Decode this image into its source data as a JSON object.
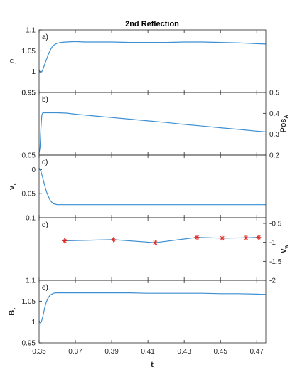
{
  "chart_data": {
    "type": "line",
    "title": "2nd Reflection",
    "xlabel": "t",
    "xlim": [
      0.35,
      0.475
    ],
    "xticks": [
      0.35,
      0.37,
      0.39,
      0.41,
      0.43,
      0.45,
      0.47
    ],
    "xtick_labels": [
      "0.35",
      "0.37",
      "0.39",
      "0.41",
      "0.43",
      "0.45",
      "0.47"
    ],
    "colors": {
      "line": "#3d8fd1",
      "marker": "#e0201b",
      "axis": "#262626"
    },
    "panels": [
      {
        "id": "a",
        "panel_label": "a)",
        "ylabel_left": "ρ",
        "ylim_left": [
          0.95,
          1.1
        ],
        "yticks_left": [
          "0.95",
          "1",
          "1.05",
          "1.1"
        ],
        "yticks_right": [],
        "series": [
          {
            "axis": "left",
            "style": "line",
            "x": [
              0.35,
              0.3505,
              0.351,
              0.3515,
              0.352,
              0.3525,
              0.353,
              0.354,
              0.355,
              0.356,
              0.357,
              0.358,
              0.359,
              0.36,
              0.361,
              0.362,
              0.365,
              0.37,
              0.375,
              0.38,
              0.39,
              0.4,
              0.41,
              0.42,
              0.43,
              0.44,
              0.45,
              0.46,
              0.47,
              0.475
            ],
            "y": [
              1.005,
              0.998,
              0.998,
              1.0,
              1.004,
              1.01,
              1.017,
              1.028,
              1.04,
              1.05,
              1.058,
              1.063,
              1.066,
              1.068,
              1.069,
              1.07,
              1.071,
              1.072,
              1.071,
              1.071,
              1.071,
              1.07,
              1.07,
              1.07,
              1.071,
              1.071,
              1.07,
              1.069,
              1.067,
              1.066
            ]
          }
        ]
      },
      {
        "id": "b",
        "panel_label": "b)",
        "ylabel_left": "",
        "ylabel_right": "Pos_A",
        "ylim_left": [
          0.05,
          0.95
        ],
        "ylim_right": [
          0.2,
          0.5
        ],
        "yticks_left": [
          "0.05",
          "0.95"
        ],
        "yticks_right": [
          "0.2",
          "0.3",
          "0.4",
          "0.5"
        ],
        "series": [
          {
            "axis": "right",
            "style": "line",
            "x": [
              0.35,
              0.3505,
              0.351,
              0.3515,
              0.352,
              0.3525,
              0.3535,
              0.355,
              0.358,
              0.36,
              0.365,
              0.37,
              0.38,
              0.39,
              0.4,
              0.41,
              0.42,
              0.43,
              0.44,
              0.45,
              0.46,
              0.47,
              0.475
            ],
            "y": [
              0.21,
              0.235,
              0.33,
              0.39,
              0.402,
              0.403,
              0.403,
              0.403,
              0.403,
              0.403,
              0.401,
              0.396,
              0.388,
              0.38,
              0.372,
              0.364,
              0.356,
              0.347,
              0.339,
              0.331,
              0.323,
              0.315,
              0.311
            ]
          }
        ]
      },
      {
        "id": "c",
        "panel_label": "c)",
        "ylabel_left": "v_x",
        "ylim_left": [
          -0.1,
          0.03
        ],
        "yticks_left": [
          "0",
          "-0.05",
          "-0.1"
        ],
        "yticks_right": [],
        "series": [
          {
            "axis": "left",
            "style": "line",
            "x": [
              0.35,
              0.351,
              0.352,
              0.353,
              0.354,
              0.355,
              0.356,
              0.357,
              0.358,
              0.359,
              0.36,
              0.362,
              0.365,
              0.37,
              0.38,
              0.39,
              0.4,
              0.41,
              0.42,
              0.43,
              0.44,
              0.45,
              0.46,
              0.47,
              0.475
            ],
            "y": [
              0.003,
              -0.004,
              -0.017,
              -0.032,
              -0.045,
              -0.055,
              -0.063,
              -0.068,
              -0.071,
              -0.072,
              -0.073,
              -0.073,
              -0.073,
              -0.073,
              -0.073,
              -0.073,
              -0.073,
              -0.073,
              -0.073,
              -0.073,
              -0.073,
              -0.073,
              -0.073,
              -0.073,
              -0.073
            ]
          }
        ]
      },
      {
        "id": "d",
        "panel_label": "d)",
        "ylabel_right": "v_w",
        "ylim_left": [
          0,
          1
        ],
        "ylim_right": [
          -2,
          -0.35
        ],
        "yticks_left": [],
        "yticks_right": [
          "-0.5",
          "-1",
          "-1.5",
          "-2"
        ],
        "series": [
          {
            "axis": "right",
            "style": "line+markers",
            "x": [
              0.364,
              0.391,
              0.414,
              0.437,
              0.451,
              0.464,
              0.471
            ],
            "y": [
              -0.96,
              -0.93,
              -1.01,
              -0.87,
              -0.89,
              -0.88,
              -0.87
            ]
          }
        ]
      },
      {
        "id": "e",
        "panel_label": "e)",
        "ylabel_left": "B_z",
        "ylim_left": [
          0.95,
          1.1
        ],
        "yticks_left": [
          "0.95",
          "1",
          "1.05",
          "1.1"
        ],
        "yticks_right": [],
        "series": [
          {
            "axis": "left",
            "style": "line",
            "x": [
              0.35,
              0.3505,
              0.351,
              0.3515,
              0.352,
              0.3525,
              0.353,
              0.354,
              0.355,
              0.356,
              0.357,
              0.358,
              0.359,
              0.36,
              0.362,
              0.365,
              0.37,
              0.38,
              0.39,
              0.4,
              0.41,
              0.42,
              0.43,
              0.44,
              0.45,
              0.46,
              0.47,
              0.475
            ],
            "y": [
              1.003,
              0.998,
              0.999,
              1.004,
              1.012,
              1.022,
              1.033,
              1.048,
              1.058,
              1.064,
              1.067,
              1.069,
              1.07,
              1.07,
              1.07,
              1.07,
              1.07,
              1.07,
              1.07,
              1.07,
              1.069,
              1.069,
              1.069,
              1.069,
              1.068,
              1.068,
              1.067,
              1.066
            ]
          }
        ]
      }
    ]
  }
}
